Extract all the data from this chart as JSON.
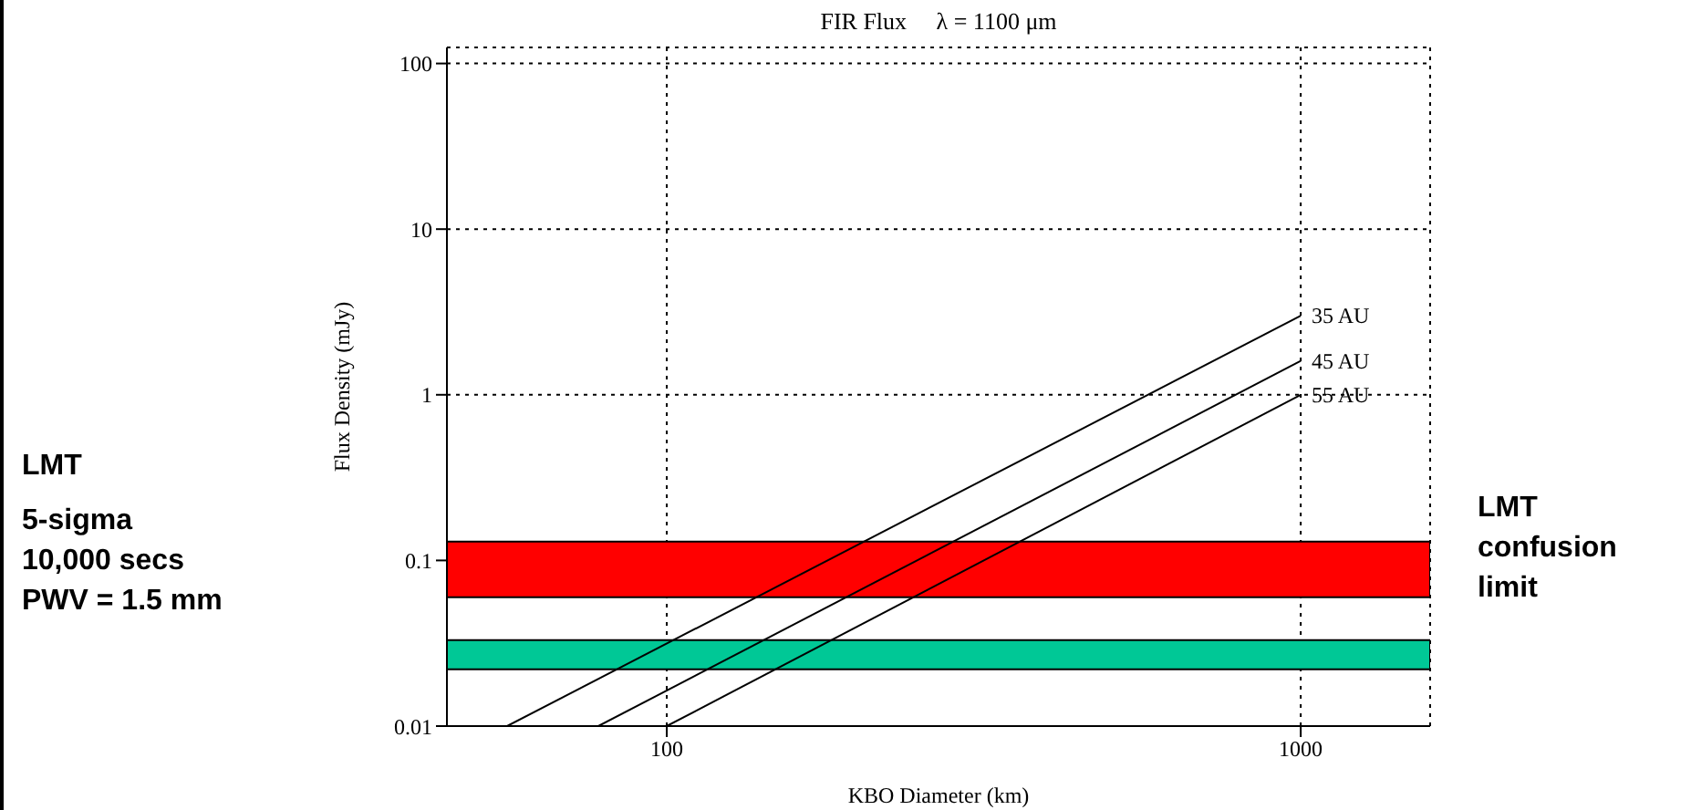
{
  "chart_data": {
    "type": "line",
    "title": "FIR Flux     λ = 1100 μm",
    "xlabel": "KBO Diameter (km)",
    "ylabel": "Flux Density (mJy)",
    "log": "xy",
    "grid": true,
    "legend": false,
    "marker": "none",
    "line_style": "solid",
    "xlim": [
      45,
      1600
    ],
    "xticks": [
      100,
      1000
    ],
    "ylim": [
      0.01,
      125
    ],
    "yticks": [
      0.01,
      0.1,
      1,
      10,
      100
    ],
    "series": [
      {
        "name": "35 AU",
        "color": "#000000",
        "x": [
          56,
          1000
        ],
        "values": [
          0.01,
          3.0
        ]
      },
      {
        "name": "45 AU",
        "color": "#000000",
        "x": [
          78,
          1000
        ],
        "values": [
          0.01,
          1.6
        ]
      },
      {
        "name": "55 AU",
        "color": "#000000",
        "x": [
          100,
          1000
        ],
        "values": [
          0.01,
          1.0
        ]
      }
    ],
    "bands": [
      {
        "axis": "y",
        "from": 0.06,
        "to": 0.13,
        "color": "#ff0000",
        "label": "LMT confusion limit"
      },
      {
        "axis": "y",
        "from": 0.022,
        "to": 0.033,
        "color": "#00c896"
      }
    ],
    "annotations": [
      "LMT",
      "5-sigma",
      "10,000 secs",
      "PWV = 1.5 mm"
    ]
  }
}
